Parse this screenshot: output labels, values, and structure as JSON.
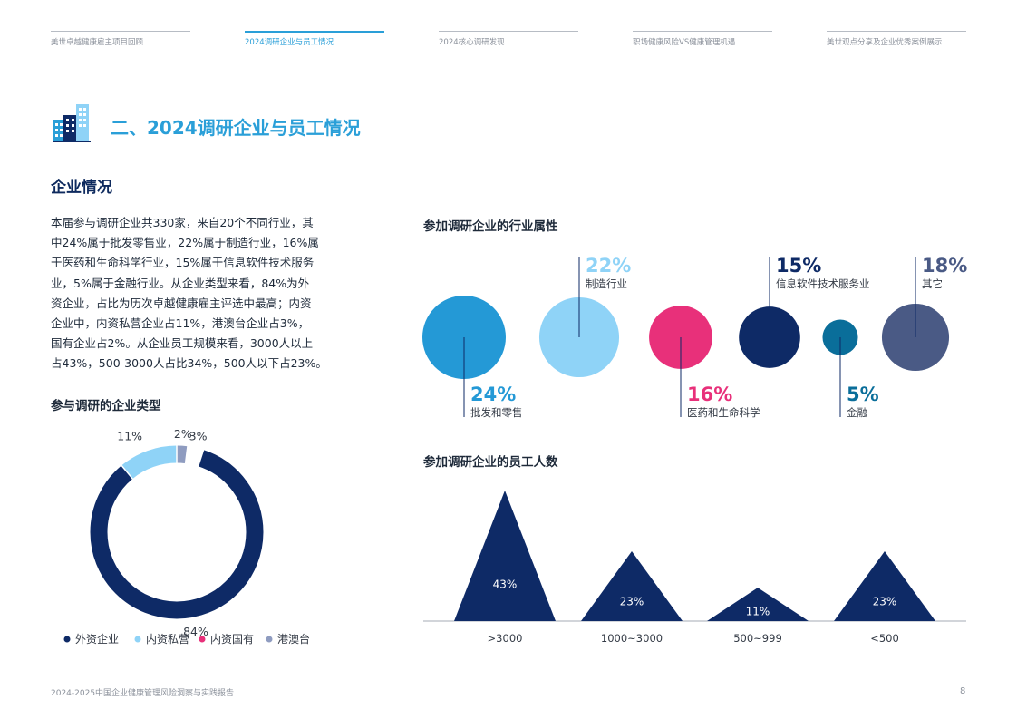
{
  "nav": {
    "tabs": [
      {
        "label": "美世卓越健康雇主项目回顾",
        "active": false
      },
      {
        "label": "2024调研企业与员工情况",
        "active": true
      },
      {
        "label": "2024核心调研发现",
        "active": false
      },
      {
        "label": "职场健康风险VS健康管理机遇",
        "active": false
      },
      {
        "label": "美世观点分享及企业优秀案例展示",
        "active": false
      }
    ]
  },
  "section": {
    "icon": "buildings-icon",
    "title": "二、2024调研企业与员工情况"
  },
  "company": {
    "heading": "企业情况",
    "paragraph_lines": [
      "本届参与调研企业共330家，来自20个不同行业，其",
      "中24%属于批发零售业，22%属于制造行业，16%属",
      "于医药和生命科学行业，15%属于信息软件技术服务",
      "业，5%属于金融行业。从企业类型来看，84%为外",
      "资企业，占比为历次卓越健康雇主评选中最高；内资",
      "企业中，内资私营企业占11%，港澳台企业占3%，",
      "国有企业占2%。从企业员工规模来看，3000人以上",
      "占43%，500-3000人占比34%，500人以下占23%。"
    ]
  },
  "colors": {
    "accent": "#2a9fd8",
    "navy": "#0e2a66",
    "light_blue": "#8fd3f7",
    "pink": "#e8307a",
    "grey_blue": "#8f9cc0",
    "teal": "#0a6e9a",
    "slate": "#4a5a85",
    "mid_blue": "#2499d6"
  },
  "chart_data": [
    {
      "type": "pie",
      "title": "参与调研的企业类型",
      "donut": true,
      "legend_position": "bottom",
      "slices": [
        {
          "name": "外资企业",
          "value": 84,
          "label": "84%",
          "color": "#0e2a66"
        },
        {
          "name": "内资私营",
          "value": 11,
          "label": "11%",
          "color": "#8fd3f7"
        },
        {
          "name": "内资国有",
          "value": 2,
          "label": "2%",
          "color": "#e8307a"
        },
        {
          "name": "港澳台",
          "value": 3,
          "label": "3%",
          "color": "#8f9cc0"
        }
      ]
    },
    {
      "type": "bubble",
      "title": "参加调研企业的行业属性",
      "items": [
        {
          "name": "批发和零售",
          "value": 24,
          "label": "24%",
          "color": "#2499d6",
          "label_side": "below"
        },
        {
          "name": "制造行业",
          "value": 22,
          "label": "22%",
          "color": "#8fd3f7",
          "label_side": "above"
        },
        {
          "name": "医药和生命科学",
          "value": 16,
          "label": "16%",
          "color": "#e8307a",
          "label_side": "below"
        },
        {
          "name": "信息软件技术服务业",
          "value": 15,
          "label": "15%",
          "color": "#0e2a66",
          "label_side": "above"
        },
        {
          "name": "金融",
          "value": 5,
          "label": "5%",
          "color": "#0a6e9a",
          "label_side": "below"
        },
        {
          "name": "其它",
          "value": 18,
          "label": "18%",
          "color": "#4a5a85",
          "label_side": "above"
        }
      ]
    },
    {
      "type": "bar",
      "style": "triangle",
      "title": "参加调研企业的员工人数",
      "categories": [
        ">3000",
        "1000~3000",
        "500~999",
        "<500"
      ],
      "values": [
        43,
        23,
        11,
        23
      ],
      "labels": [
        "43%",
        "23%",
        "11%",
        "23%"
      ],
      "ylim": [
        0,
        43
      ]
    }
  ],
  "footer": {
    "report": "2024-2025中国企业健康管理风险洞察与实践报告",
    "page": "8"
  }
}
